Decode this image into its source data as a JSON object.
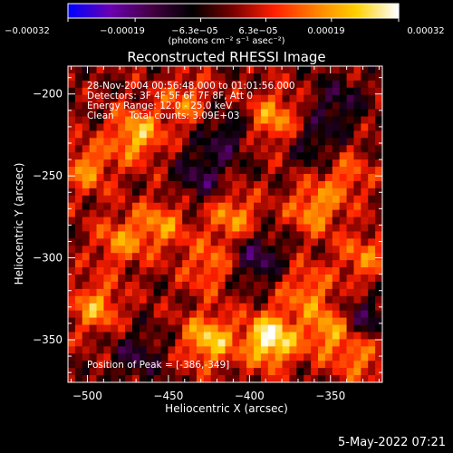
{
  "chart_data": {
    "type": "heatmap",
    "title": "Reconstructed RHESSI Image",
    "xlabel": "Heliocentric X (arcsec)",
    "ylabel": "Heliocentric Y (arcsec)",
    "xlim": [
      -512,
      -318
    ],
    "ylim": [
      -376,
      -183
    ],
    "x_ticks": [
      -500,
      -450,
      -400,
      -350
    ],
    "y_ticks": [
      -200,
      -250,
      -300,
      -350
    ],
    "x_tick_labels": [
      "−500",
      "−450",
      "−400",
      "−350"
    ],
    "y_tick_labels": [
      "−200",
      "−250",
      "−300",
      "−350"
    ],
    "colorbar": {
      "min": -0.00032,
      "max": 0.00032,
      "ticks": [
        -0.00032,
        -0.00019,
        -6.3e-05,
        6.3e-05,
        0.00019,
        0.00032
      ],
      "tick_labels": [
        "−0.00032",
        "−0.00019",
        "−6.3e−05",
        "6.3e−05",
        "0.00019",
        "0.00032"
      ],
      "units": "(photons cm⁻² s⁻¹ asec⁻²)",
      "colormap": [
        "#0000ff",
        "#6a00b0",
        "#440044",
        "#000000",
        "#7a0000",
        "#ff2000",
        "#ff8000",
        "#ffd000",
        "#ffffff"
      ]
    },
    "annotations": [
      "28-Nov-2004 00:56:48.000 to 01:01:56.000",
      "Detectors: 3F 4F 5F 6F 7F 8F, Att 0",
      "Energy Range: 12.0 - 25.0 keV",
      "Clean     Total counts: 3.09E+03"
    ],
    "peak_label": "Position of Peak = [-386,-349]",
    "peak": {
      "x": -386,
      "y": -349
    },
    "hotspots": [
      {
        "x": -387,
        "y": -350,
        "value": 0.00032
      },
      {
        "x": -470,
        "y": -225,
        "value": 0.00022
      },
      {
        "x": -425,
        "y": -350,
        "value": 0.00024
      },
      {
        "x": -350,
        "y": -345,
        "value": 0.0002
      },
      {
        "x": -495,
        "y": -330,
        "value": 0.00018
      },
      {
        "x": -360,
        "y": -270,
        "value": 0.00018
      },
      {
        "x": -410,
        "y": -275,
        "value": 0.00017
      },
      {
        "x": -455,
        "y": -280,
        "value": 0.00016
      },
      {
        "x": -500,
        "y": -245,
        "value": 0.00016
      },
      {
        "x": -385,
        "y": -215,
        "value": 0.00018
      },
      {
        "x": -440,
        "y": -205,
        "value": 0.00014
      },
      {
        "x": -330,
        "y": -300,
        "value": 0.00014
      },
      {
        "x": -480,
        "y": -290,
        "value": 0.00015
      },
      {
        "x": -340,
        "y": -250,
        "value": 0.00012
      },
      {
        "x": -365,
        "y": -320,
        "value": 0.00015
      },
      {
        "x": -425,
        "y": -305,
        "value": 0.00014
      },
      {
        "x": -330,
        "y": -360,
        "value": 0.00016
      }
    ],
    "coldspots": [
      {
        "x": -430,
        "y": -250,
        "value": -0.00014
      },
      {
        "x": -415,
        "y": -225,
        "value": -0.00013
      },
      {
        "x": -395,
        "y": -300,
        "value": -0.00016
      },
      {
        "x": -345,
        "y": -205,
        "value": -0.00012
      },
      {
        "x": -330,
        "y": -340,
        "value": -0.00016
      },
      {
        "x": -470,
        "y": -360,
        "value": -0.00012
      },
      {
        "x": -360,
        "y": -230,
        "value": -0.00011
      }
    ]
  },
  "footer": {
    "date": "5-May-2022 07:21"
  }
}
